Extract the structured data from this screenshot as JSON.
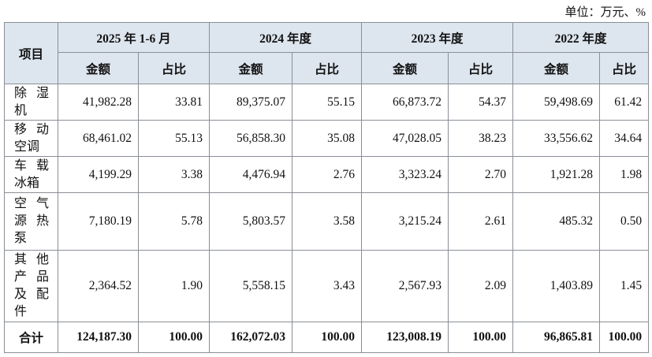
{
  "header": {
    "unit": "单位：万元、%"
  },
  "table": {
    "corner": "项目",
    "periods": [
      "2025 年 1-6 月",
      "2024 年度",
      "2023 年度",
      "2022 年度"
    ],
    "subheaders": [
      "金额",
      "占比"
    ],
    "rows": [
      [
        "除湿机",
        "41,982.28",
        "33.81",
        "89,375.07",
        "55.15",
        "66,873.72",
        "54.37",
        "59,498.69",
        "61.42"
      ],
      [
        "移动空调",
        "68,461.02",
        "55.13",
        "56,858.30",
        "35.08",
        "47,028.05",
        "38.23",
        "33,556.62",
        "34.64"
      ],
      [
        "车载冰箱",
        "4,199.29",
        "3.38",
        "4,476.94",
        "2.76",
        "3,323.24",
        "2.70",
        "1,921.28",
        "1.98"
      ],
      [
        "空气源热泵",
        "7,180.19",
        "5.78",
        "5,803.57",
        "3.58",
        "3,215.24",
        "2.61",
        "485.32",
        "0.50"
      ],
      [
        "其他产品及配件",
        "2,364.52",
        "1.90",
        "5,558.15",
        "3.43",
        "2,567.93",
        "2.09",
        "1,403.89",
        "1.45"
      ]
    ],
    "total": [
      "合计",
      "124,187.30",
      "100.00",
      "162,072.03",
      "100.00",
      "123,008.19",
      "100.00",
      "96,865.81",
      "100.00"
    ]
  }
}
